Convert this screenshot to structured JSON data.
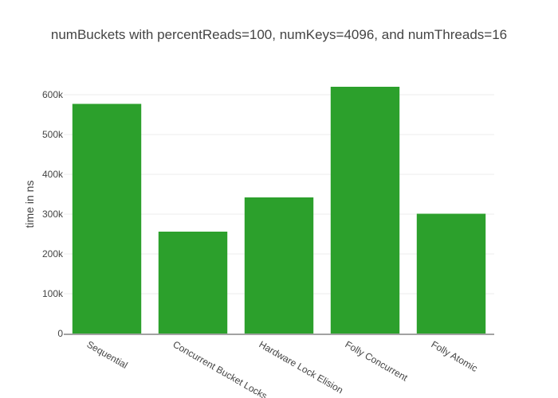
{
  "chart_data": {
    "type": "bar",
    "title": "numBuckets with percentReads=100, numKeys=4096, and numThreads=16",
    "xlabel": "",
    "ylabel": "time in ns",
    "categories": [
      "Sequential",
      "Concurrent Bucket Locks",
      "Hardware Lock Elision",
      "Folly Concurrent",
      "Folly Atomic"
    ],
    "values": [
      577000,
      256000,
      342000,
      620000,
      301000
    ],
    "ylim": [
      0,
      650000
    ],
    "yticks": [
      0,
      100000,
      200000,
      300000,
      400000,
      500000,
      600000
    ],
    "ytick_labels": [
      "0",
      "100k",
      "200k",
      "300k",
      "400k",
      "500k",
      "600k"
    ],
    "bar_color": "#2ca02c",
    "grid": true,
    "legend": "none"
  }
}
